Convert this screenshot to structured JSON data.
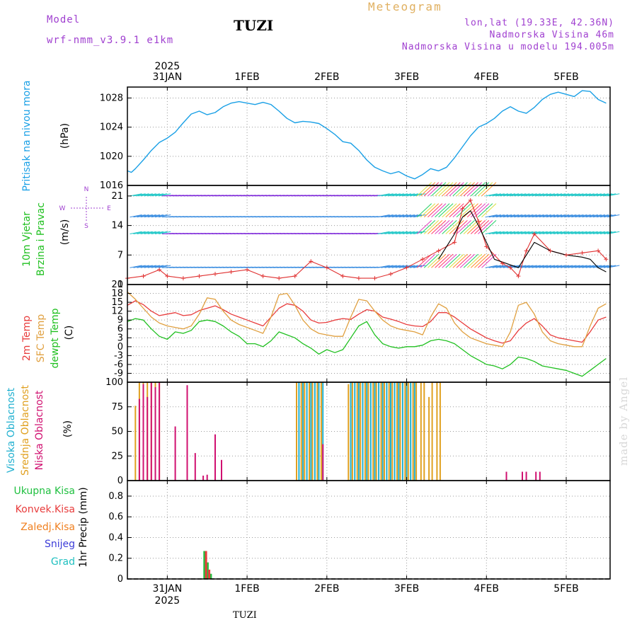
{
  "header": {
    "model_label": "Model",
    "model_name": "wrf-nmm_v3.9.1 e1km",
    "title": "Meteogram",
    "station": "TUZI",
    "location": "lon,lat (19.33E, 42.36N)",
    "elevation": "Nadmorska Visina 46m",
    "model_elevation": "Nadmorska Visina u modelu 194.005m"
  },
  "footer": {
    "station": "TUZI",
    "watermark": "made by Angel"
  },
  "time_axis": {
    "labels": [
      "31JAN",
      "1FEB",
      "2FEB",
      "3FEB",
      "4FEB",
      "5FEB"
    ],
    "positions_days": [
      0,
      1,
      2,
      3,
      4,
      5
    ],
    "year": "2025",
    "range_days": [
      -0.5,
      5.55
    ]
  },
  "chart_data": [
    {
      "type": "line",
      "panel": "pressure",
      "ylabel": [
        "Pritisak na nivou mora",
        "(hPa)"
      ],
      "ylim": [
        1016,
        1029.5
      ],
      "yticks": [
        1016,
        1020,
        1024,
        1028
      ],
      "grid": true,
      "series": [
        {
          "color": "#1aa0e6",
          "x": [
            -0.5,
            -0.45,
            -0.4,
            -0.3,
            -0.2,
            -0.1,
            0,
            0.1,
            0.2,
            0.3,
            0.4,
            0.5,
            0.6,
            0.7,
            0.8,
            0.9,
            1.0,
            1.1,
            1.2,
            1.3,
            1.4,
            1.5,
            1.6,
            1.7,
            1.8,
            1.9,
            2.0,
            2.1,
            2.2,
            2.3,
            2.4,
            2.5,
            2.6,
            2.7,
            2.8,
            2.9,
            3.0,
            3.1,
            3.2,
            3.3,
            3.4,
            3.5,
            3.6,
            3.7,
            3.8,
            3.9,
            4.0,
            4.1,
            4.2,
            4.3,
            4.4,
            4.5,
            4.6,
            4.7,
            4.8,
            4.9,
            5.0,
            5.1,
            5.2,
            5.3,
            5.4,
            5.5
          ],
          "y": [
            1018.0,
            1017.8,
            1018.3,
            1019.5,
            1020.8,
            1021.9,
            1022.5,
            1023.3,
            1024.6,
            1025.8,
            1026.2,
            1025.7,
            1026.0,
            1026.8,
            1027.3,
            1027.5,
            1027.3,
            1027.1,
            1027.4,
            1027.1,
            1026.2,
            1025.2,
            1024.6,
            1024.8,
            1024.7,
            1024.5,
            1023.8,
            1023.0,
            1022.0,
            1021.8,
            1020.8,
            1019.5,
            1018.5,
            1018.0,
            1017.6,
            1017.9,
            1017.3,
            1016.9,
            1017.5,
            1018.3,
            1018.0,
            1018.5,
            1019.8,
            1021.3,
            1022.8,
            1024.0,
            1024.5,
            1025.2,
            1026.2,
            1026.8,
            1026.2,
            1025.9,
            1026.7,
            1027.8,
            1028.5,
            1028.8,
            1028.5,
            1028.2,
            1029.0,
            1028.9,
            1027.8,
            1027.3
          ]
        }
      ]
    },
    {
      "type": "line",
      "panel": "wind",
      "ylabel": [
        "10m Vjetar",
        "Brzina i Pravac",
        "(m/s)"
      ],
      "compass_legend": [
        "N",
        "E",
        "S",
        "W"
      ],
      "ylim": [
        0,
        23.5
      ],
      "yticks": [
        0,
        7,
        14,
        21
      ],
      "grid": true,
      "barb_levels": [
        0,
        4,
        12,
        16,
        21
      ],
      "barb_palette": [
        "#7a22d8",
        "#3a8de0",
        "#22c8c8",
        "#22d068",
        "#d8e040",
        "#ff8c2a",
        "#ff3a6a",
        "#e040c0"
      ],
      "series": [
        {
          "name_note": "speed",
          "color": "#e03030",
          "x": [
            -0.5,
            -0.3,
            -0.1,
            0.0,
            0.2,
            0.4,
            0.6,
            0.8,
            1.0,
            1.2,
            1.4,
            1.6,
            1.8,
            2.0,
            2.2,
            2.4,
            2.6,
            2.8,
            3.0,
            3.2,
            3.4,
            3.6,
            3.7,
            3.8,
            3.9,
            4.0,
            4.2,
            4.3,
            4.4,
            4.5,
            4.6,
            4.8,
            5.0,
            5.2,
            5.4,
            5.5
          ],
          "y": [
            1.5,
            2.0,
            3.5,
            2.0,
            1.5,
            2.0,
            2.5,
            3.0,
            3.5,
            2.0,
            1.5,
            2.0,
            5.5,
            4.0,
            2.0,
            1.5,
            1.5,
            2.5,
            4.0,
            6.0,
            8.0,
            10.0,
            18.0,
            20.0,
            15.0,
            9.0,
            5.0,
            4.0,
            2.0,
            8.0,
            12.0,
            8.0,
            7.0,
            7.5,
            8.0,
            6.0
          ]
        },
        {
          "name_note": "gust",
          "color": "#000000",
          "x": [
            3.4,
            3.6,
            3.7,
            3.8,
            3.9,
            4.0,
            4.1,
            4.4,
            4.6,
            4.8,
            5.0,
            5.2,
            5.3,
            5.4,
            5.5
          ],
          "y": [
            6,
            12,
            16,
            17.5,
            14,
            10,
            6,
            4,
            10,
            8,
            7,
            6.5,
            6,
            4,
            3
          ]
        }
      ]
    },
    {
      "type": "line",
      "panel": "temperature",
      "ylabel": [
        "2m Temp",
        "SFC Temp",
        "dewpt Temp",
        "(C)"
      ],
      "ylim": [
        -12,
        21
      ],
      "yticks": [
        -9,
        -6,
        -3,
        0,
        3,
        6,
        9,
        12,
        15,
        18,
        21
      ],
      "grid": true,
      "series": [
        {
          "name_note": "2m",
          "color": "#e83c3c",
          "x": [
            -0.5,
            -0.4,
            -0.3,
            -0.2,
            -0.1,
            0.0,
            0.1,
            0.2,
            0.3,
            0.4,
            0.5,
            0.6,
            0.7,
            0.8,
            0.9,
            1.0,
            1.1,
            1.2,
            1.3,
            1.4,
            1.5,
            1.6,
            1.7,
            1.8,
            1.9,
            2.0,
            2.1,
            2.2,
            2.3,
            2.4,
            2.5,
            2.6,
            2.7,
            2.8,
            2.9,
            3.0,
            3.1,
            3.2,
            3.3,
            3.4,
            3.5,
            3.6,
            3.7,
            3.8,
            3.9,
            4.0,
            4.1,
            4.2,
            4.3,
            4.4,
            4.5,
            4.6,
            4.7,
            4.8,
            4.9,
            5.0,
            5.1,
            5.2,
            5.3,
            5.4,
            5.5
          ],
          "y": [
            14,
            15.5,
            14.2,
            12,
            10.5,
            11,
            11.5,
            10.5,
            10.8,
            12.2,
            13,
            13.8,
            12.5,
            11,
            10,
            9,
            8,
            7,
            10,
            13,
            14.5,
            14,
            12,
            9,
            8,
            8.2,
            9,
            9.5,
            9.2,
            11,
            12.5,
            12,
            10,
            9.3,
            8.5,
            7.5,
            7,
            6.8,
            8.5,
            11.5,
            11.5,
            10,
            8,
            6,
            4.5,
            3,
            2,
            1.2,
            2,
            5.5,
            8,
            9.5,
            7,
            4,
            3,
            2.5,
            2,
            1.5,
            5,
            9,
            10
          ]
        },
        {
          "name_note": "sfc",
          "color": "#e0a040",
          "x": [
            -0.5,
            -0.4,
            -0.3,
            -0.2,
            -0.1,
            0.0,
            0.1,
            0.2,
            0.3,
            0.4,
            0.5,
            0.6,
            0.7,
            0.8,
            0.9,
            1.0,
            1.1,
            1.2,
            1.3,
            1.4,
            1.5,
            1.6,
            1.7,
            1.8,
            1.9,
            2.0,
            2.1,
            2.2,
            2.3,
            2.4,
            2.5,
            2.6,
            2.7,
            2.8,
            2.9,
            3.0,
            3.1,
            3.2,
            3.3,
            3.4,
            3.5,
            3.6,
            3.7,
            3.8,
            3.9,
            4.0,
            4.1,
            4.2,
            4.3,
            4.4,
            4.5,
            4.6,
            4.7,
            4.8,
            4.9,
            5.0,
            5.1,
            5.2,
            5.3,
            5.4,
            5.5
          ],
          "y": [
            18.5,
            16,
            13,
            10,
            8,
            7,
            6.5,
            6,
            7,
            11,
            16.5,
            16,
            12,
            9,
            7.5,
            6.5,
            5.5,
            4.5,
            10,
            17.5,
            18,
            14,
            9,
            6,
            4.5,
            4,
            3.5,
            3.5,
            10,
            16,
            15.5,
            12,
            9,
            7,
            6,
            5.5,
            5,
            4,
            10,
            14.5,
            13,
            8,
            5,
            3,
            2,
            1,
            0.5,
            0,
            5,
            14,
            15,
            11,
            5,
            2,
            1,
            0.5,
            0,
            0,
            7,
            13,
            14.5
          ]
        },
        {
          "name_note": "dewpt",
          "color": "#20c020",
          "x": [
            -0.5,
            -0.4,
            -0.3,
            -0.2,
            -0.1,
            0.0,
            0.1,
            0.2,
            0.3,
            0.4,
            0.5,
            0.6,
            0.7,
            0.8,
            0.9,
            1.0,
            1.1,
            1.2,
            1.3,
            1.4,
            1.5,
            1.6,
            1.7,
            1.8,
            1.9,
            2.0,
            2.1,
            2.2,
            2.3,
            2.4,
            2.5,
            2.6,
            2.7,
            2.8,
            2.9,
            3.0,
            3.1,
            3.2,
            3.3,
            3.4,
            3.5,
            3.6,
            3.7,
            3.8,
            3.9,
            4.0,
            4.1,
            4.2,
            4.3,
            4.4,
            4.5,
            4.6,
            4.7,
            4.8,
            4.9,
            5.0,
            5.1,
            5.2,
            5.3,
            5.4,
            5.5
          ],
          "y": [
            8.5,
            9.5,
            9,
            6,
            3.5,
            2.5,
            5,
            4.5,
            5.5,
            8.5,
            9,
            8.5,
            7,
            5,
            3.5,
            1,
            1,
            0,
            2,
            5,
            4,
            3,
            1,
            -0.5,
            -2.5,
            -1,
            -2,
            -1,
            3,
            7,
            8.5,
            4,
            1,
            0,
            -0.5,
            0,
            0,
            0.5,
            2,
            2.5,
            2,
            1,
            -1,
            -3,
            -4.5,
            -6,
            -6.5,
            -7.5,
            -6,
            -3.5,
            -4,
            -5,
            -6.5,
            -7,
            -7.5,
            -8,
            -9,
            -10,
            -8,
            -6,
            -4
          ]
        }
      ]
    },
    {
      "type": "bar",
      "panel": "cloud",
      "ylabel": [
        "Visoka Oblacnost",
        "Srednja Oblacnost",
        "Niska Oblacnost",
        "(%)"
      ],
      "ylim": [
        0,
        100
      ],
      "yticks": [
        0,
        25,
        50,
        75,
        100
      ],
      "grid": true,
      "series": [
        {
          "name_note": "high",
          "color": "#20b0d0",
          "x": [
            1.65,
            1.7,
            1.75,
            1.8,
            1.85,
            1.9,
            1.95,
            2.3,
            2.35,
            2.4,
            2.45,
            2.5,
            2.55,
            2.6,
            2.65,
            2.7,
            2.75,
            2.8,
            2.85,
            2.9,
            2.95,
            3.0,
            3.05,
            3.1
          ],
          "y": [
            100,
            100,
            100,
            100,
            100,
            100,
            100,
            100,
            100,
            100,
            100,
            100,
            100,
            100,
            100,
            100,
            100,
            100,
            100,
            100,
            100,
            100,
            100,
            100
          ]
        },
        {
          "name_note": "mid",
          "color": "#e0a020",
          "x": [
            -0.4,
            -0.35,
            -0.3,
            -0.25,
            -0.2,
            -0.15,
            -0.1,
            1.62,
            1.68,
            1.72,
            1.78,
            1.82,
            1.88,
            1.93,
            2.27,
            2.32,
            2.38,
            2.42,
            2.48,
            2.52,
            2.58,
            2.62,
            2.68,
            2.72,
            2.78,
            2.82,
            2.88,
            2.92,
            2.98,
            3.02,
            3.08,
            3.12,
            3.18,
            3.22,
            3.28,
            3.32,
            3.38,
            3.42
          ],
          "y": [
            76,
            100,
            100,
            100,
            100,
            100,
            100,
            100,
            100,
            100,
            100,
            100,
            100,
            100,
            98,
            100,
            100,
            100,
            100,
            100,
            100,
            100,
            100,
            100,
            100,
            100,
            100,
            100,
            100,
            100,
            100,
            100,
            100,
            100,
            85,
            100,
            100,
            100
          ]
        },
        {
          "name_note": "low",
          "color": "#d01070",
          "x": [
            -0.35,
            -0.3,
            -0.25,
            -0.2,
            -0.15,
            -0.1,
            0.1,
            0.25,
            0.35,
            0.45,
            0.5,
            0.6,
            0.68,
            1.95,
            4.25,
            4.45,
            4.5,
            4.62,
            4.67
          ],
          "y": [
            83,
            98,
            85,
            100,
            95,
            100,
            55,
            97,
            28,
            5,
            6,
            47,
            21,
            37,
            9,
            9,
            9,
            9,
            9
          ]
        }
      ]
    },
    {
      "type": "bar",
      "panel": "precip",
      "ylabel": [
        "1hr Precip (mm)"
      ],
      "legend": [
        "Ukupna Kisa",
        "Konvek.Kisa",
        "Zaledj.Kisa",
        "Snijeg",
        "Grad"
      ],
      "legend_colors": [
        "#20c040",
        "#e83c3c",
        "#f08020",
        "#3c3cd8",
        "#20c0c0"
      ],
      "ylim": [
        0,
        0.95
      ],
      "yticks": [
        0,
        0.2,
        0.4,
        0.6,
        0.8
      ],
      "grid": true,
      "series": [
        {
          "name_note": "total",
          "color": "#20c040",
          "x": [
            0.47,
            0.51,
            0.55
          ],
          "y": [
            0.27,
            0.16,
            0.05
          ]
        },
        {
          "name_note": "conv",
          "color": "#e83c3c",
          "x": [
            0.49,
            0.53
          ],
          "y": [
            0.27,
            0.09
          ]
        }
      ]
    }
  ]
}
